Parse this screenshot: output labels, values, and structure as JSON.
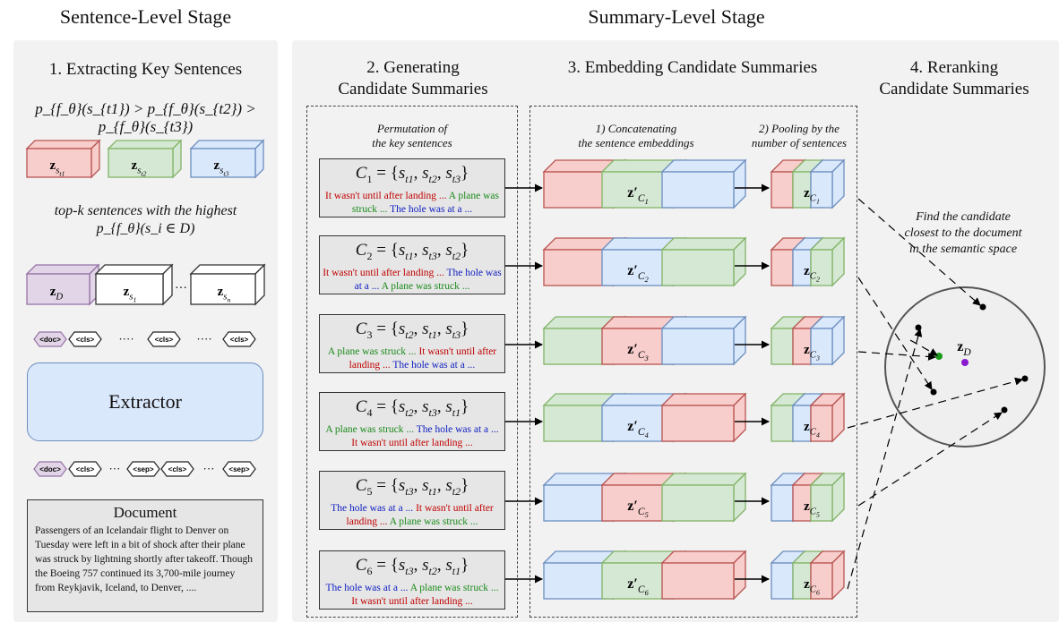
{
  "stages": {
    "sentence_level": "Sentence-Level Stage",
    "summary_level": "Summary-Level Stage"
  },
  "step1": {
    "title": "1. Extracting Key Sentences",
    "ordering": "p_{f_θ}(s_{t1}) > p_{f_θ}(s_{t2}) > p_{f_θ}(s_{t3})",
    "key_blocks": [
      "z_{s_{t1}}",
      "z_{s_{t2}}",
      "z_{s_{t3}}"
    ],
    "topk_line1": "top-k sentences with the highest",
    "topk_line2": "p_{f_θ}(s_i ∈ D)",
    "embed_blocks": [
      "z_D",
      "z_{s_1}",
      "z_{s_n}"
    ],
    "ellipsis": "···",
    "tokens_top": [
      "<doc>",
      "<cls>",
      "<cls>",
      "<cls>"
    ],
    "tokens_bottom": [
      "<doc>",
      "<cls>",
      "<sep>",
      "<cls>",
      "<sep>"
    ],
    "dots": "····",
    "extractor": "Extractor",
    "document": {
      "title": "Document",
      "body": "Passengers of an Icelandair flight to Denver on Tuesday were left in a bit of shock after their plane was struck by lightning shortly after takeoff. Though the Boeing 757 continued its 3,700-mile journey from Reykjavik, Iceland, to Denver,  ...."
    }
  },
  "step2": {
    "title_line1": "2. Generating",
    "title_line2": "Candidate Summaries",
    "sub_line1": "Permutation of",
    "sub_line2": "the key sentences",
    "candidates": [
      {
        "eq": "C_1 = {s_{t1}, s_{t2}, s_{t3}}",
        "parts": [
          [
            "It wasn't until after landing ... ",
            "red"
          ],
          [
            "A plane was struck ... ",
            "green"
          ],
          [
            "The hole was at a ...",
            "blue"
          ]
        ]
      },
      {
        "eq": "C_2 = {s_{t1}, s_{t3}, s_{t2}}",
        "parts": [
          [
            "It wasn't until after landing ... ",
            "red"
          ],
          [
            "The hole was at a ... ",
            "blue"
          ],
          [
            "A plane was struck ...",
            "green"
          ]
        ]
      },
      {
        "eq": "C_3 = {s_{t2}, s_{t1}, s_{t3}}",
        "parts": [
          [
            "A plane was struck ... ",
            "green"
          ],
          [
            "It wasn't until after landing ... ",
            "red"
          ],
          [
            "The hole was at a ...",
            "blue"
          ]
        ]
      },
      {
        "eq": "C_4 = {s_{t2}, s_{t3}, s_{t1}}",
        "parts": [
          [
            "A plane was struck ... ",
            "green"
          ],
          [
            "The hole was at a ... ",
            "blue"
          ],
          [
            "It wasn't until after landing ...",
            "red"
          ]
        ]
      },
      {
        "eq": "C_5 = {s_{t3}, s_{t1}, s_{t2}}",
        "parts": [
          [
            "The hole was at a ... ",
            "blue"
          ],
          [
            "It wasn't until after landing ... ",
            "red"
          ],
          [
            "A plane was struck ...",
            "green"
          ]
        ]
      },
      {
        "eq": "C_6 = {s_{t3}, s_{t2}, s_{t1}}",
        "parts": [
          [
            "The hole was at a ... ",
            "blue"
          ],
          [
            "A plane was struck ... ",
            "green"
          ],
          [
            "It wasn't until after landing ...",
            "red"
          ]
        ]
      }
    ]
  },
  "step3": {
    "title": "3. Embedding Candidate Summaries",
    "sub1_line1": "1) Concatenating",
    "sub1_line2": "the sentence embeddings",
    "sub2_line1": "2) Pooling by the",
    "sub2_line2": "number of sentences",
    "orders": [
      [
        "red",
        "green",
        "blue"
      ],
      [
        "red",
        "blue",
        "green"
      ],
      [
        "green",
        "red",
        "blue"
      ],
      [
        "green",
        "blue",
        "red"
      ],
      [
        "blue",
        "red",
        "green"
      ],
      [
        "blue",
        "green",
        "red"
      ]
    ],
    "concat_labels": [
      "z'_{C_1}",
      "z'_{C_2}",
      "z'_{C_3}",
      "z'_{C_4}",
      "z'_{C_5}",
      "z'_{C_6}"
    ],
    "pool_labels": [
      "z_{C_1}",
      "z_{C_2}",
      "z_{C_3}",
      "z_{C_4}",
      "z_{C_5}",
      "z_{C_6}"
    ]
  },
  "step4": {
    "title_line1": "4. Reranking",
    "title_line2": "Candidate Summaries",
    "note_line1": "Find the candidate",
    "note_line2": "closest to the document",
    "note_line3": "in the semantic space",
    "doc_point": "z_D"
  },
  "colors": {
    "red_fill": "#f8cecc",
    "red_stroke": "#b85450",
    "green_fill": "#d5e8d4",
    "green_stroke": "#82b366",
    "blue_fill": "#dae8fc",
    "blue_stroke": "#6c8ebf",
    "purple_fill": "#e1d5e7",
    "purple_stroke": "#9673a6",
    "white_fill": "#ffffff",
    "white_stroke": "#333333",
    "green_point": "#1a9a1a",
    "purple_point": "#8a1ad0"
  }
}
